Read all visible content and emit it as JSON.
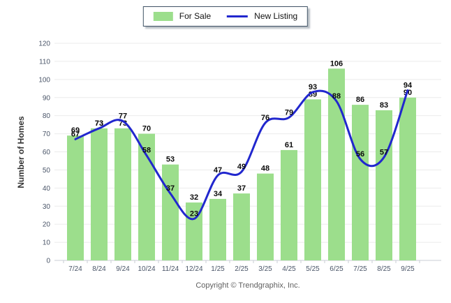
{
  "legend": {
    "for_sale_label": "For Sale",
    "new_listing_label": "New Listing"
  },
  "y_axis_title": "Number of Homes",
  "copyright": "Copyright © Trendgraphix, Inc.",
  "colors": {
    "bar": "#9CDE8C",
    "line": "#2127CE"
  },
  "chart_data": {
    "type": "bar",
    "categories": [
      "7/24",
      "8/24",
      "9/24",
      "10/24",
      "11/24",
      "12/24",
      "1/25",
      "2/25",
      "3/25",
      "4/25",
      "5/25",
      "6/25",
      "7/25",
      "8/25",
      "9/25"
    ],
    "series": [
      {
        "name": "For Sale",
        "type": "bar",
        "values": [
          69,
          73,
          73,
          70,
          53,
          32,
          34,
          37,
          48,
          61,
          89,
          106,
          86,
          83,
          90
        ]
      },
      {
        "name": "New Listing",
        "type": "line",
        "values": [
          67,
          73,
          77,
          58,
          37,
          23,
          47,
          49,
          76,
          79,
          93,
          88,
          56,
          57,
          94
        ]
      }
    ],
    "title": "",
    "xlabel": "",
    "ylabel": "Number of Homes",
    "ylim": [
      0,
      120
    ],
    "ytick_step": 10,
    "grid": true,
    "legend_position": "top-center",
    "data_labels": true
  }
}
